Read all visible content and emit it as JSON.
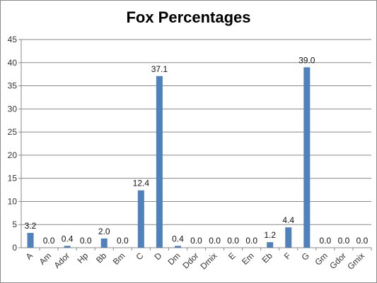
{
  "chart_data": {
    "type": "bar",
    "title": "Fox Percentages",
    "xlabel": "",
    "ylabel": "",
    "categories": [
      "A",
      "Am",
      "Ador",
      "Hp",
      "Bb",
      "Bm",
      "C",
      "D",
      "Dm",
      "Ddor",
      "Dmix",
      "E",
      "Em",
      "Eb",
      "F",
      "G",
      "Gm",
      "Gdor",
      "Gmix"
    ],
    "values": [
      3.2,
      0.0,
      0.4,
      0.0,
      2.0,
      0.0,
      12.4,
      37.1,
      0.4,
      0.0,
      0.0,
      0.0,
      0.0,
      1.2,
      4.4,
      39.0,
      0.0,
      0.0,
      0.0
    ],
    "data_labels": [
      "3.2",
      "0.0",
      "0.4",
      "0.0",
      "2.0",
      "0.0",
      "12.4",
      "37.1",
      "0.4",
      "0.0",
      "0.0",
      "0.0",
      "0.0",
      "1.2",
      "4.4",
      "39.0",
      "0.0",
      "0.0",
      "0.0"
    ],
    "ylim": [
      0,
      45
    ],
    "yticks": [
      0,
      5,
      10,
      15,
      20,
      25,
      30,
      35,
      40,
      45
    ],
    "grid": true,
    "legend": "none",
    "bar_color": "#4f81bd",
    "grid_color": "#8a8a8a"
  }
}
